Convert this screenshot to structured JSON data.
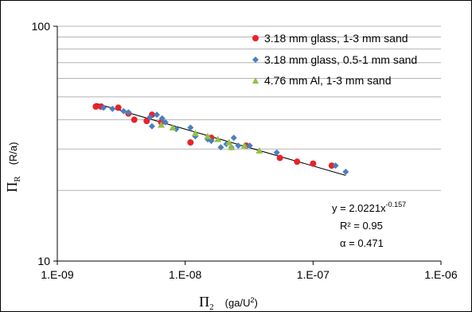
{
  "chart_data": {
    "type": "scatter",
    "x_scale": "log",
    "y_scale": "log",
    "xlim": [
      1e-09,
      1e-06
    ],
    "ylim": [
      10,
      100
    ],
    "x_ticks": [
      1e-09,
      1e-08,
      1e-07,
      1e-06
    ],
    "x_tick_labels": [
      "1.E-09",
      "1.E-08",
      "1.E-07",
      "1.E-06"
    ],
    "y_ticks": [
      10,
      100
    ],
    "y_tick_labels": [
      "10",
      "100"
    ],
    "grid": "horizontal",
    "legend_position": "top-right",
    "xlabel": {
      "symbol": "Π",
      "sub": "2",
      "units_prefix": "(ga/U",
      "units_sup": "2",
      "units_suffix": ")"
    },
    "ylabel": {
      "symbol": "Π",
      "sub": "R",
      "units": "(R/a)"
    },
    "series": [
      {
        "name": "3.18 mm glass, 1-3 mm sand",
        "marker": "circle",
        "color": "#e8232a",
        "points": [
          [
            2e-09,
            45.5
          ],
          [
            2.2e-09,
            45.5
          ],
          [
            3e-09,
            45.0
          ],
          [
            3.6e-09,
            42.5
          ],
          [
            4e-09,
            40.0
          ],
          [
            5e-09,
            39.5
          ],
          [
            5.5e-09,
            42.0
          ],
          [
            6.5e-09,
            39.0
          ],
          [
            1.1e-08,
            32.0
          ],
          [
            1.6e-08,
            33.5
          ],
          [
            3e-08,
            31.0
          ],
          [
            5.5e-08,
            27.5
          ],
          [
            7.5e-08,
            26.5
          ],
          [
            1e-07,
            26.0
          ],
          [
            1.4e-07,
            25.5
          ]
        ]
      },
      {
        "name": "3.18 mm glass, 0.5-1 mm sand",
        "marker": "diamond",
        "color": "#4a7fc1",
        "points": [
          [
            2.3e-09,
            45.0
          ],
          [
            2.7e-09,
            44.5
          ],
          [
            3.3e-09,
            43.5
          ],
          [
            3.6e-09,
            43.0
          ],
          [
            5.3e-09,
            41.0
          ],
          [
            5.5e-09,
            37.5
          ],
          [
            6e-09,
            42.0
          ],
          [
            6.6e-09,
            40.5
          ],
          [
            7e-09,
            39.0
          ],
          [
            8.5e-09,
            36.5
          ],
          [
            1.1e-08,
            37.0
          ],
          [
            1.2e-08,
            34.0
          ],
          [
            1.5e-08,
            33.0
          ],
          [
            1.6e-08,
            32.5
          ],
          [
            1.9e-08,
            30.5
          ],
          [
            2.1e-08,
            31.5
          ],
          [
            2.3e-08,
            30.5
          ],
          [
            2.4e-08,
            33.5
          ],
          [
            2.6e-08,
            31.0
          ],
          [
            3.2e-08,
            31.0
          ],
          [
            5.2e-08,
            29.0
          ],
          [
            1.5e-07,
            25.5
          ],
          [
            1.8e-07,
            24.0
          ]
        ]
      },
      {
        "name": "4.76 mm Al, 1-3 mm sand",
        "marker": "triangle",
        "color": "#93c047",
        "points": [
          [
            6.5e-09,
            38.0
          ],
          [
            8e-09,
            37.0
          ],
          [
            1.2e-08,
            35.0
          ],
          [
            1.5e-08,
            34.0
          ],
          [
            1.8e-08,
            33.0
          ],
          [
            2.2e-08,
            32.0
          ],
          [
            2.3e-08,
            30.5
          ],
          [
            2.9e-08,
            31.0
          ],
          [
            3.8e-08,
            29.5
          ]
        ]
      }
    ],
    "trendline": {
      "type": "power",
      "a": 2.0221,
      "b": -0.157,
      "color": "#000000",
      "x_range": [
        2e-09,
        1.8e-07
      ]
    },
    "annotation": {
      "eq_prefix": "y = 2.0221x",
      "eq_exp": "-0.157",
      "r2": "R² = 0.95",
      "alpha": "α = 0.471"
    }
  }
}
